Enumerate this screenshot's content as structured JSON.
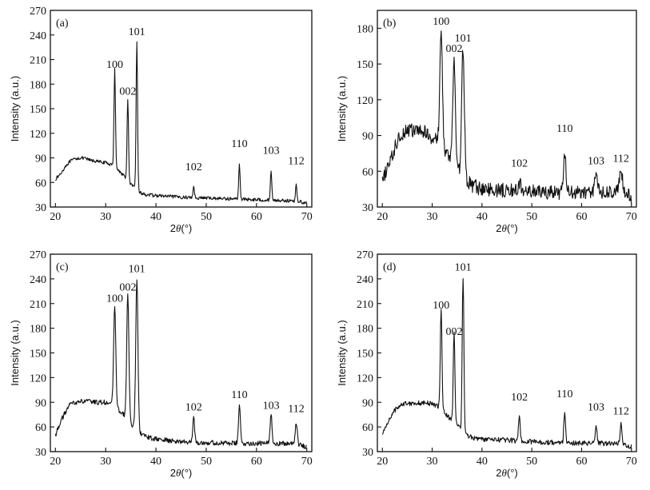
{
  "figure": {
    "chart_data": [
      {
        "type": "line",
        "panel_tag": "(a)",
        "xlabel_prefix": "2",
        "xlabel_symbol": "θ",
        "xlabel_suffix": "(°)",
        "ylabel": "Intensity (a.u.)",
        "xlim": [
          19,
          71
        ],
        "ylim": [
          30,
          270
        ],
        "xticks": [
          20,
          30,
          40,
          50,
          60,
          70
        ],
        "yticks": [
          30,
          60,
          90,
          120,
          150,
          180,
          210,
          240,
          270
        ],
        "baseline": [
          [
            20,
            64
          ],
          [
            21,
            70
          ],
          [
            22,
            80
          ],
          [
            23,
            86
          ],
          [
            24,
            89
          ],
          [
            25,
            90
          ],
          [
            26,
            89
          ],
          [
            27,
            87
          ],
          [
            28,
            86
          ],
          [
            29,
            85
          ],
          [
            30,
            84
          ],
          [
            31,
            82
          ],
          [
            32,
            78
          ],
          [
            33,
            72
          ],
          [
            34,
            66
          ],
          [
            35,
            58
          ],
          [
            36,
            52
          ],
          [
            37,
            47
          ],
          [
            38,
            45
          ],
          [
            40,
            44
          ],
          [
            45,
            42
          ],
          [
            50,
            41
          ],
          [
            55,
            40
          ],
          [
            60,
            39
          ],
          [
            65,
            38
          ],
          [
            68,
            37
          ],
          [
            70,
            35
          ]
        ],
        "peaks": [
          {
            "label": "100",
            "x": 31.8,
            "y": 200
          },
          {
            "label": "002",
            "x": 34.4,
            "y": 160
          },
          {
            "label": "101",
            "x": 36.2,
            "y": 232
          },
          {
            "label": "102",
            "x": 47.5,
            "y": 55
          },
          {
            "label": "110",
            "x": 56.6,
            "y": 82
          },
          {
            "label": "103",
            "x": 62.9,
            "y": 73
          },
          {
            "label": "112",
            "x": 67.9,
            "y": 57
          }
        ],
        "peak_widths": [
          0.3,
          0.3,
          0.3,
          0.3,
          0.3,
          0.3,
          0.3
        ],
        "noise": 2,
        "peak_label_y": [
          200,
          167,
          240,
          75,
          103,
          95,
          82
        ]
      },
      {
        "type": "line",
        "panel_tag": "(b)",
        "xlabel_prefix": "2",
        "xlabel_symbol": "θ",
        "xlabel_suffix": "(°)",
        "ylabel": "Intensity (a.u.)",
        "xlim": [
          19,
          71
        ],
        "ylim": [
          30,
          195
        ],
        "xticks": [
          20,
          30,
          40,
          50,
          60,
          70
        ],
        "yticks": [
          30,
          60,
          90,
          120,
          150,
          180
        ],
        "baseline": [
          [
            20,
            50
          ],
          [
            21,
            64
          ],
          [
            22,
            72
          ],
          [
            23,
            86
          ],
          [
            24,
            92
          ],
          [
            25,
            95
          ],
          [
            26,
            94
          ],
          [
            27,
            94
          ],
          [
            28,
            93
          ],
          [
            29,
            92
          ],
          [
            30,
            88
          ],
          [
            31,
            86
          ],
          [
            32,
            80
          ],
          [
            33,
            74
          ],
          [
            34,
            68
          ],
          [
            35,
            62
          ],
          [
            36,
            58
          ],
          [
            37,
            52
          ],
          [
            38,
            48
          ],
          [
            40,
            45
          ],
          [
            45,
            44
          ],
          [
            50,
            43
          ],
          [
            55,
            42
          ],
          [
            60,
            42
          ],
          [
            65,
            42
          ],
          [
            68,
            43
          ],
          [
            70,
            38
          ]
        ],
        "peaks": [
          {
            "label": "100",
            "x": 31.8,
            "y": 176
          },
          {
            "label": "002",
            "x": 34.4,
            "y": 153
          },
          {
            "label": "101",
            "x": 36.2,
            "y": 163
          },
          {
            "label": "102",
            "x": 47.5,
            "y": 50
          },
          {
            "label": "110",
            "x": 56.6,
            "y": 75
          },
          {
            "label": "103",
            "x": 62.9,
            "y": 56
          },
          {
            "label": "112",
            "x": 67.9,
            "y": 58
          }
        ],
        "peak_widths": [
          0.55,
          0.55,
          0.55,
          0.6,
          0.5,
          0.7,
          0.7
        ],
        "noise": 6,
        "peak_label_y": [
          183,
          160,
          169,
          64,
          93,
          66,
          68
        ]
      },
      {
        "type": "line",
        "panel_tag": "(c)",
        "xlabel_prefix": "2",
        "xlabel_symbol": "θ",
        "xlabel_suffix": "(°)",
        "ylabel": "Intensity (a.u.)",
        "xlim": [
          19,
          71
        ],
        "ylim": [
          30,
          270
        ],
        "xticks": [
          20,
          30,
          40,
          50,
          60,
          70
        ],
        "yticks": [
          30,
          60,
          90,
          120,
          150,
          180,
          210,
          240,
          270
        ],
        "baseline": [
          [
            20,
            50
          ],
          [
            21,
            66
          ],
          [
            22,
            78
          ],
          [
            23,
            88
          ],
          [
            24,
            90
          ],
          [
            25,
            91
          ],
          [
            26,
            91
          ],
          [
            27,
            91
          ],
          [
            28,
            90
          ],
          [
            29,
            90
          ],
          [
            30,
            90
          ],
          [
            31,
            88
          ],
          [
            32,
            84
          ],
          [
            33,
            78
          ],
          [
            34,
            72
          ],
          [
            35,
            64
          ],
          [
            36,
            58
          ],
          [
            37,
            52
          ],
          [
            38,
            48
          ],
          [
            40,
            45
          ],
          [
            45,
            42
          ],
          [
            50,
            41
          ],
          [
            55,
            40
          ],
          [
            60,
            40
          ],
          [
            65,
            40
          ],
          [
            68,
            39
          ],
          [
            70,
            36
          ]
        ],
        "peaks": [
          {
            "label": "100",
            "x": 31.8,
            "y": 207
          },
          {
            "label": "002",
            "x": 34.4,
            "y": 222
          },
          {
            "label": "101",
            "x": 36.2,
            "y": 241
          },
          {
            "label": "102",
            "x": 47.5,
            "y": 70
          },
          {
            "label": "110",
            "x": 56.6,
            "y": 85
          },
          {
            "label": "103",
            "x": 62.9,
            "y": 75
          },
          {
            "label": "112",
            "x": 67.9,
            "y": 66
          }
        ],
        "peak_widths": [
          0.45,
          0.45,
          0.45,
          0.4,
          0.4,
          0.4,
          0.4
        ],
        "noise": 3,
        "peak_label_y": [
          212,
          226,
          248,
          80,
          95,
          82,
          78
        ]
      },
      {
        "type": "line",
        "panel_tag": "(d)",
        "xlabel_prefix": "2",
        "xlabel_symbol": "θ",
        "xlabel_suffix": "(°)",
        "ylabel": "Intensity (a.u.)",
        "xlim": [
          19,
          71
        ],
        "ylim": [
          30,
          270
        ],
        "xticks": [
          20,
          30,
          40,
          50,
          60,
          70
        ],
        "yticks": [
          30,
          60,
          90,
          120,
          150,
          180,
          210,
          240,
          270
        ],
        "baseline": [
          [
            20,
            50
          ],
          [
            21,
            65
          ],
          [
            22,
            76
          ],
          [
            23,
            84
          ],
          [
            24,
            88
          ],
          [
            25,
            89
          ],
          [
            26,
            89
          ],
          [
            27,
            89
          ],
          [
            28,
            89
          ],
          [
            29,
            89
          ],
          [
            30,
            88
          ],
          [
            31,
            86
          ],
          [
            32,
            80
          ],
          [
            33,
            74
          ],
          [
            34,
            68
          ],
          [
            35,
            62
          ],
          [
            36,
            56
          ],
          [
            37,
            50
          ],
          [
            38,
            47
          ],
          [
            40,
            45
          ],
          [
            45,
            44
          ],
          [
            50,
            42
          ],
          [
            55,
            41
          ],
          [
            60,
            40
          ],
          [
            65,
            40
          ],
          [
            68,
            40
          ],
          [
            70,
            36
          ]
        ],
        "peaks": [
          {
            "label": "100",
            "x": 31.8,
            "y": 205
          },
          {
            "label": "002",
            "x": 34.4,
            "y": 173
          },
          {
            "label": "101",
            "x": 36.2,
            "y": 243
          },
          {
            "label": "102",
            "x": 47.5,
            "y": 75
          },
          {
            "label": "110",
            "x": 56.6,
            "y": 80
          },
          {
            "label": "103",
            "x": 62.9,
            "y": 63
          },
          {
            "label": "112",
            "x": 67.9,
            "y": 64
          }
        ],
        "peak_widths": [
          0.35,
          0.35,
          0.35,
          0.35,
          0.35,
          0.35,
          0.35
        ],
        "noise": 3,
        "peak_label_y": [
          204,
          172,
          250,
          92,
          96,
          80,
          75
        ]
      }
    ]
  }
}
